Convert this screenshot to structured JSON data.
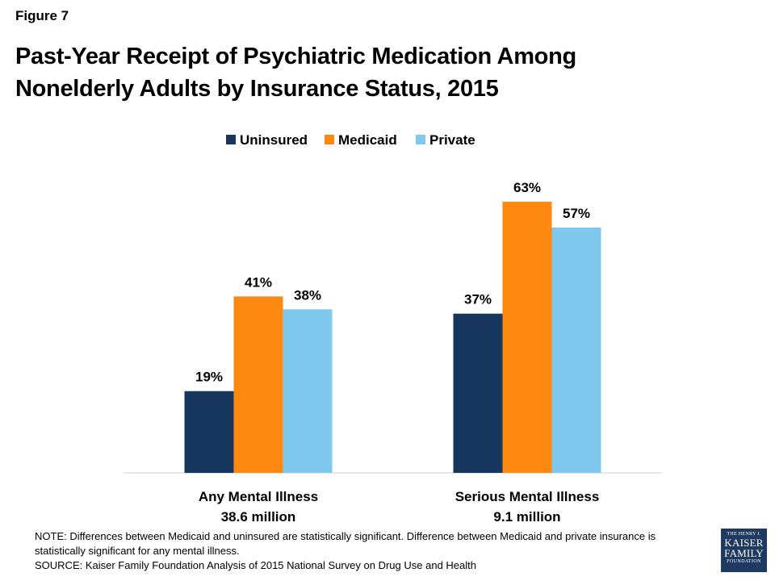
{
  "figure_label": "Figure 7",
  "title_line1": "Past-Year Receipt of Psychiatric Medication Among",
  "title_line2": "Nonelderly Adults by Insurance Status, 2015",
  "chart_data": {
    "type": "bar",
    "title": "Past-Year Receipt of Psychiatric Medication Among Nonelderly Adults by Insurance Status, 2015",
    "categories": [
      "Any Mental Illness",
      "Serious Mental Illness"
    ],
    "category_sublabels": [
      "38.6 million",
      "9.1 million"
    ],
    "series": [
      {
        "name": "Uninsured",
        "values": [
          19,
          37
        ],
        "color": "#17375e"
      },
      {
        "name": "Medicaid",
        "values": [
          41,
          63
        ],
        "color": "#ff8811"
      },
      {
        "name": "Private",
        "values": [
          38,
          57
        ],
        "color": "#7fc8ee"
      }
    ],
    "value_suffix": "%",
    "ylim": [
      0,
      70
    ],
    "grid": false,
    "legend": "top-center"
  },
  "notes": {
    "note": "NOTE: Differences between Medicaid and uninsured are statistically significant. Difference between Medicaid and private insurance is statistically significant for any mental illness.",
    "source": "SOURCE: Kaiser Family Foundation Analysis of 2015 National Survey on Drug Use and Health"
  },
  "logo": {
    "line1": "THE HENRY J.",
    "line2": "KAISER",
    "line3": "FAMILY",
    "line4": "FOUNDATION"
  }
}
